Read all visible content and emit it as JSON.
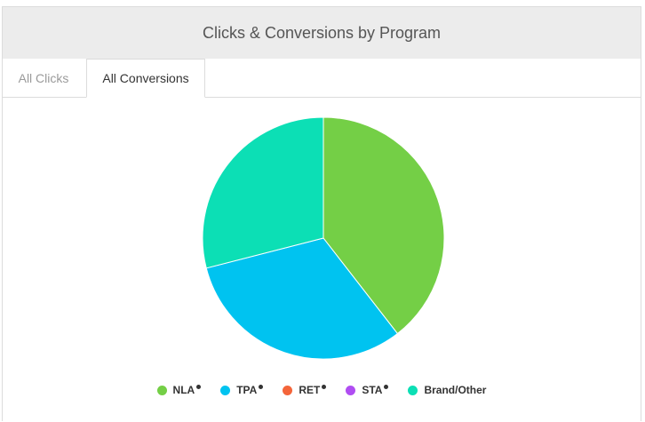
{
  "panel": {
    "title": "Clicks & Conversions by Program"
  },
  "tabs": [
    {
      "label": "All Clicks",
      "active": false
    },
    {
      "label": "All Conversions",
      "active": true
    }
  ],
  "chart_data": {
    "type": "pie",
    "categories": [
      "NLA",
      "TPA",
      "RET",
      "STA",
      "Brand/Other"
    ],
    "values": [
      39.5,
      31.5,
      0,
      0,
      29.0
    ],
    "colors": [
      "#74cf46",
      "#00c3f0",
      "#f4653a",
      "#b04df2",
      "#0cdfb5"
    ],
    "legend_position": "bottom-center"
  },
  "legend": {
    "items": [
      {
        "label": "NLA",
        "color": "#74cf46",
        "marked": true
      },
      {
        "label": "TPA",
        "color": "#00c3f0",
        "marked": true
      },
      {
        "label": "RET",
        "color": "#f4653a",
        "marked": true
      },
      {
        "label": "STA",
        "color": "#b04df2",
        "marked": true
      },
      {
        "label": "Brand/Other",
        "color": "#0cdfb5",
        "marked": false
      }
    ]
  }
}
